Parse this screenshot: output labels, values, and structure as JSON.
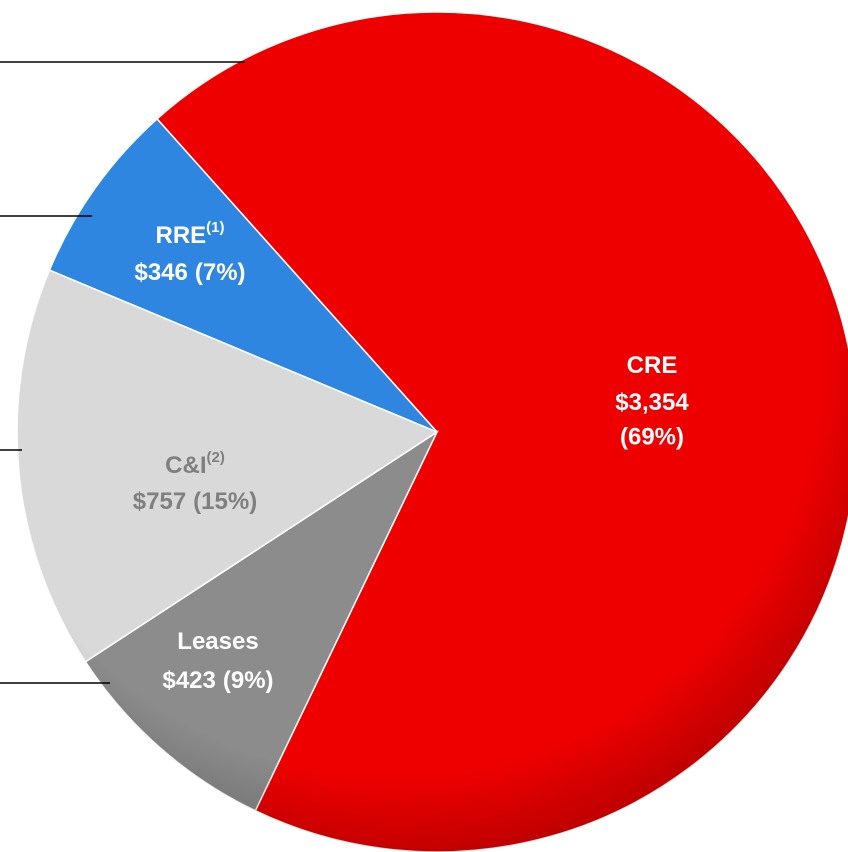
{
  "chart_data": {
    "type": "pie",
    "categories": [
      "CRE",
      "Leases",
      "C&I",
      "RRE"
    ],
    "footnote_marks": [
      null,
      null,
      "(2)",
      "(1)"
    ],
    "values": [
      3354,
      423,
      757,
      346
    ],
    "value_labels": [
      "$3,354",
      "$423",
      "$757",
      "$346"
    ],
    "percents": [
      69,
      9,
      15,
      7
    ],
    "percent_labels": [
      "(69%)",
      "(9%)",
      "(15%)",
      "(7%)"
    ],
    "colors": [
      "#ee0000",
      "#8c8c8c",
      "#d9d9d9",
      "#2f86e0"
    ],
    "label_colors": [
      "#ffffff",
      "#ffffff",
      "#7f7f7f",
      "#ffffff"
    ]
  }
}
